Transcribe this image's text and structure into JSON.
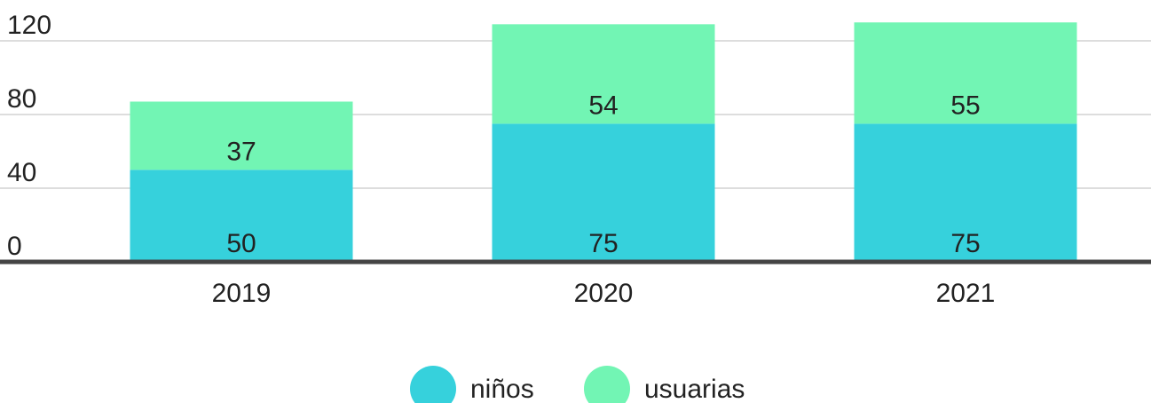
{
  "chart_data": {
    "type": "stacked_bar",
    "categories": [
      "2019",
      "2020",
      "2021"
    ],
    "series": [
      {
        "name": "niños",
        "color": "#36d1dc",
        "values": [
          50,
          75,
          75
        ]
      },
      {
        "name": "usuarias",
        "color": "#72f5b4",
        "values": [
          37,
          54,
          55
        ]
      }
    ],
    "ylim": [
      0,
      140
    ],
    "yticks": [
      0,
      40,
      80,
      120
    ],
    "grid": true,
    "legend": "bottom"
  }
}
